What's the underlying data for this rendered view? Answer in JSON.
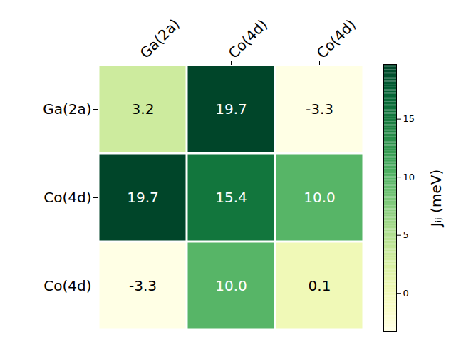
{
  "chart_data": {
    "type": "heatmap",
    "x_categories": [
      "Ga(2a)",
      "Co(4d)",
      "Co(4d)"
    ],
    "y_categories": [
      "Ga(2a)",
      "Co(4d)",
      "Co(4d)"
    ],
    "cells": [
      [
        3.2,
        19.7,
        -3.3
      ],
      [
        19.7,
        15.4,
        10.0
      ],
      [
        -3.3,
        10.0,
        0.1
      ]
    ],
    "value_labels": [
      [
        "3.2",
        "19.7",
        "-3.3"
      ],
      [
        "19.7",
        "15.4",
        "10.0"
      ],
      [
        "-3.3",
        "10.0",
        "0.1"
      ]
    ],
    "data_labels": true,
    "color": "YlGn",
    "colorbar": {
      "label": "Jᵢⱼ (meV)",
      "range": [
        -3.3,
        19.7
      ],
      "ticks": [
        0,
        5,
        10,
        15
      ]
    }
  }
}
